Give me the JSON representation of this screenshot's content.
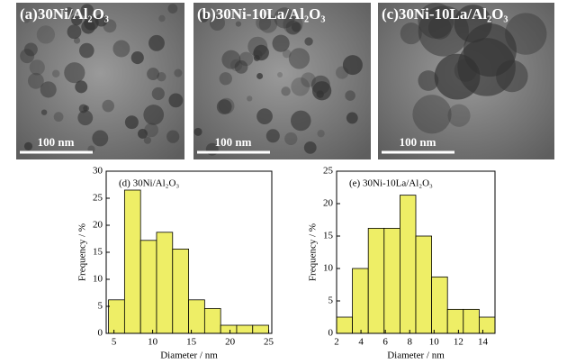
{
  "panels": [
    {
      "label": "(a)30Ni/Al₂O₃",
      "scale_bar": "100 nm"
    },
    {
      "label": "(b)30Ni-10La/Al₂O₃",
      "scale_bar": "100 nm"
    },
    {
      "label": "(c)30Ni-10La/Al₂O₃",
      "scale_bar": "100 nm"
    }
  ],
  "chart_data": [
    {
      "type": "histogram",
      "title": "(d) 30Ni/Al₂O₃",
      "x_label": "Diameter / nm",
      "y_label": "Frequency / %",
      "bins": [
        4.3,
        6.37,
        8.44,
        10.51,
        12.58,
        14.65,
        16.72,
        18.79,
        20.86,
        22.93,
        25.0
      ],
      "values": [
        6.2,
        26.5,
        17.2,
        18.7,
        15.6,
        6.2,
        4.6,
        1.5,
        1.5,
        1.5
      ],
      "color": "#eeee66",
      "xlim": [
        4,
        25.4
      ],
      "xticks": [
        5,
        10,
        15,
        20,
        25
      ],
      "ylim": [
        0,
        30
      ],
      "yticks": [
        0,
        5,
        10,
        15,
        20,
        25,
        30
      ]
    },
    {
      "type": "histogram",
      "title": "(e) 30Ni-10La/Al₂O₃",
      "x_label": "Diameter / nm",
      "y_label": "Frequency / %",
      "bins": [
        2,
        3.3,
        4.6,
        5.9,
        7.2,
        8.5,
        9.8,
        11.1,
        12.4,
        13.7,
        15
      ],
      "values": [
        2.5,
        10,
        16.2,
        16.2,
        21.3,
        15,
        8.7,
        3.7,
        3.7,
        2.5
      ],
      "color": "#eeee66",
      "xlim": [
        2,
        15
      ],
      "xticks": [
        2,
        4,
        6,
        8,
        10,
        12,
        14
      ],
      "ylim": [
        0,
        25
      ],
      "yticks": [
        0,
        5,
        10,
        15,
        20,
        25
      ]
    }
  ]
}
